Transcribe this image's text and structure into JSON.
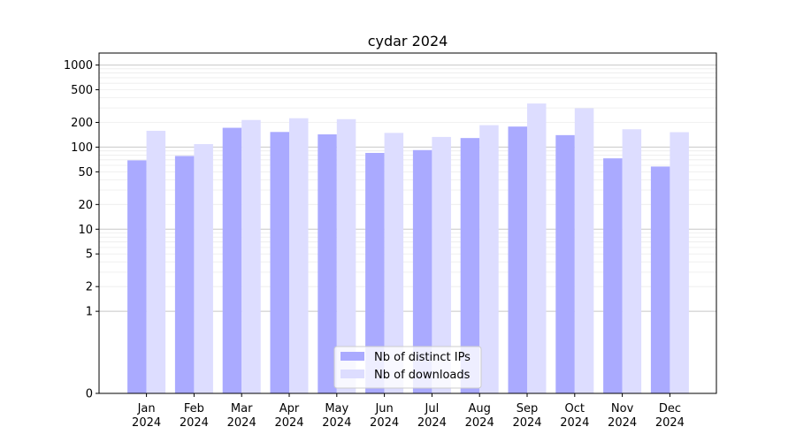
{
  "chart_data": {
    "type": "bar",
    "title": "cydar 2024",
    "xlabel": "",
    "ylabel": "",
    "yscale": "symlog",
    "ylim": [
      0,
      1400
    ],
    "grid": true,
    "legend_position": "bottom-center",
    "categories": [
      {
        "month": "Jan",
        "year": "2024"
      },
      {
        "month": "Feb",
        "year": "2024"
      },
      {
        "month": "Mar",
        "year": "2024"
      },
      {
        "month": "Apr",
        "year": "2024"
      },
      {
        "month": "May",
        "year": "2024"
      },
      {
        "month": "Jun",
        "year": "2024"
      },
      {
        "month": "Jul",
        "year": "2024"
      },
      {
        "month": "Aug",
        "year": "2024"
      },
      {
        "month": "Sep",
        "year": "2024"
      },
      {
        "month": "Oct",
        "year": "2024"
      },
      {
        "month": "Nov",
        "year": "2024"
      },
      {
        "month": "Dec",
        "year": "2024"
      }
    ],
    "yticks": [
      {
        "value": 0,
        "label": "0"
      },
      {
        "value": 1,
        "label": "1"
      },
      {
        "value": 2,
        "label": "2"
      },
      {
        "value": 5,
        "label": "5"
      },
      {
        "value": 10,
        "label": "10"
      },
      {
        "value": 20,
        "label": "20"
      },
      {
        "value": 50,
        "label": "50"
      },
      {
        "value": 100,
        "label": "100"
      },
      {
        "value": 200,
        "label": "200"
      },
      {
        "value": 500,
        "label": "500"
      },
      {
        "value": 1000,
        "label": "1000"
      }
    ],
    "series": [
      {
        "name": "Nb of distinct IPs",
        "color": "#aaaaff",
        "values": [
          69,
          78,
          172,
          153,
          143,
          85,
          92,
          129,
          178,
          140,
          73,
          58
        ]
      },
      {
        "name": "Nb of downloads",
        "color": "#ddddff",
        "values": [
          158,
          109,
          214,
          225,
          219,
          149,
          133,
          185,
          340,
          297,
          165,
          152
        ]
      }
    ]
  }
}
